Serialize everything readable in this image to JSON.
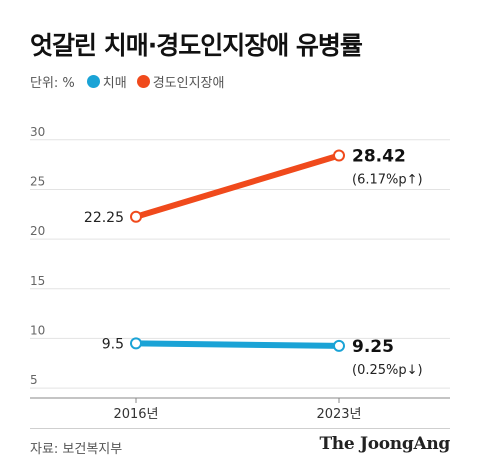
{
  "title": "엇갈린 치매·경도인지장애 유병률",
  "unit_label": "단위: %",
  "source": "자료: 보건복지부",
  "brand": "The JoongAng",
  "colors": {
    "dementia": "#1aa3d6",
    "mci": "#f04a1c"
  },
  "chart_data": {
    "type": "line",
    "title": "엇갈린 치매·경도인지장애 유병률",
    "categories": [
      "2016년",
      "2023년"
    ],
    "yticks": [
      5,
      10,
      15,
      20,
      25,
      30
    ],
    "ylim": [
      4,
      33
    ],
    "grid": true,
    "legend": "top-left",
    "series": [
      {
        "name": "치매",
        "color": "#1aa3d6",
        "values": [
          9.5,
          9.25
        ],
        "labels": [
          "9.5",
          "9.25"
        ],
        "change": "(0.25%p↓)"
      },
      {
        "name": "경도인지장애",
        "color": "#f04a1c",
        "values": [
          22.25,
          28.42
        ],
        "labels": [
          "22.25",
          "28.42"
        ],
        "change": "(6.17%p↑)"
      }
    ]
  }
}
